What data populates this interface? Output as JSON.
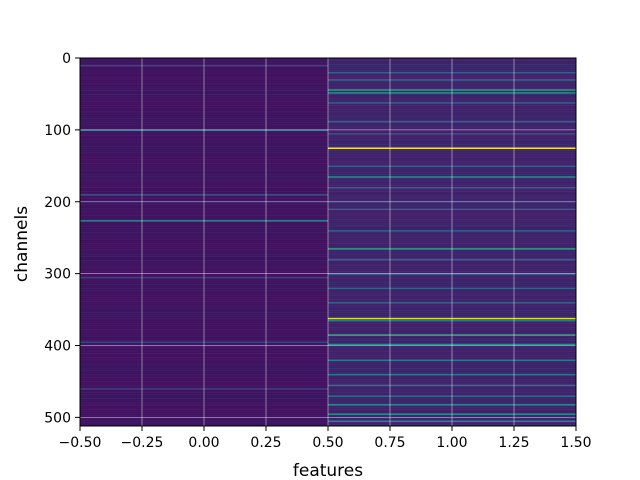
{
  "chart_data": {
    "type": "heatmap",
    "title": "",
    "xlabel": "features",
    "ylabel": "channels",
    "xlim": [
      -0.5,
      1.5
    ],
    "ylim": [
      512,
      0
    ],
    "x_ticks": [
      -0.5,
      -0.25,
      0.0,
      0.25,
      0.5,
      0.75,
      1.0,
      1.25,
      1.5
    ],
    "x_tick_labels": [
      "−0.50",
      "−0.25",
      "0.00",
      "0.25",
      "0.50",
      "0.75",
      "1.00",
      "1.25",
      "1.50"
    ],
    "y_ticks": [
      0,
      100,
      200,
      300,
      400,
      500
    ],
    "y_tick_labels": [
      "0",
      "100",
      "200",
      "300",
      "400",
      "500"
    ],
    "grid": true,
    "colormap": "viridis",
    "columns": [
      {
        "feature": 0,
        "base_value": 0.05,
        "highlights": [
          {
            "channel": 10,
            "value": 0.2
          },
          {
            "channel": 100,
            "value": 0.35
          },
          {
            "channel": 190,
            "value": 0.25
          },
          {
            "channel": 226,
            "value": 0.45
          },
          {
            "channel": 305,
            "value": 0.2
          },
          {
            "channel": 395,
            "value": 0.2
          },
          {
            "channel": 460,
            "value": 0.2
          }
        ]
      },
      {
        "feature": 1,
        "base_value": 0.1,
        "highlights": [
          {
            "channel": 20,
            "value": 0.3
          },
          {
            "channel": 30,
            "value": 0.35
          },
          {
            "channel": 44,
            "value": 0.55
          },
          {
            "channel": 48,
            "value": 0.5
          },
          {
            "channel": 62,
            "value": 0.3
          },
          {
            "channel": 88,
            "value": 0.3
          },
          {
            "channel": 105,
            "value": 0.25
          },
          {
            "channel": 125,
            "value": 1.0
          },
          {
            "channel": 150,
            "value": 0.3
          },
          {
            "channel": 165,
            "value": 0.5
          },
          {
            "channel": 180,
            "value": 0.3
          },
          {
            "channel": 210,
            "value": 0.3
          },
          {
            "channel": 240,
            "value": 0.3
          },
          {
            "channel": 265,
            "value": 0.55
          },
          {
            "channel": 280,
            "value": 0.3
          },
          {
            "channel": 300,
            "value": 0.35
          },
          {
            "channel": 320,
            "value": 0.3
          },
          {
            "channel": 340,
            "value": 0.3
          },
          {
            "channel": 362,
            "value": 0.95
          },
          {
            "channel": 365,
            "value": 0.4
          },
          {
            "channel": 385,
            "value": 0.6
          },
          {
            "channel": 398,
            "value": 0.5
          },
          {
            "channel": 420,
            "value": 0.4
          },
          {
            "channel": 440,
            "value": 0.4
          },
          {
            "channel": 455,
            "value": 0.4
          },
          {
            "channel": 470,
            "value": 0.35
          },
          {
            "channel": 482,
            "value": 0.5
          },
          {
            "channel": 495,
            "value": 0.5
          },
          {
            "channel": 505,
            "value": 0.45
          }
        ]
      }
    ]
  }
}
